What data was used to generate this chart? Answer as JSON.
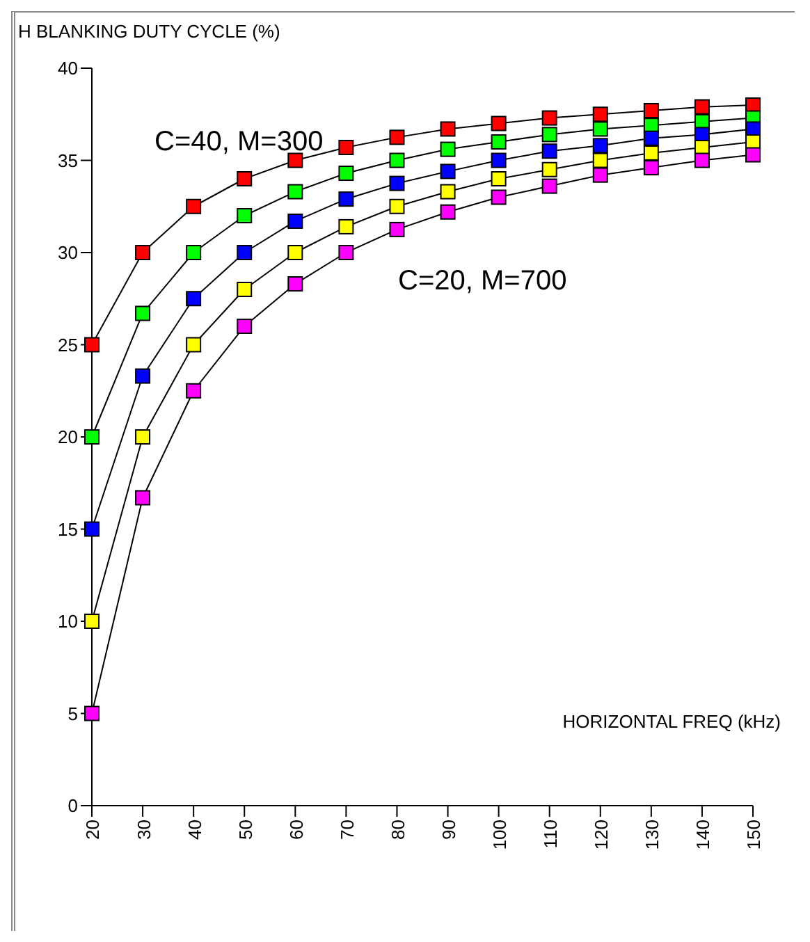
{
  "chart_data": {
    "type": "line",
    "ylabel": "H BLANKING DUTY CYCLE (%)",
    "xlabel": "HORIZONTAL FREQ (kHz)",
    "x": [
      20,
      30,
      40,
      50,
      60,
      70,
      80,
      90,
      100,
      110,
      120,
      130,
      140,
      150
    ],
    "series": [
      {
        "color": "#ff0000",
        "values": [
          25,
          30,
          32.5,
          34,
          35,
          35.7,
          36.25,
          36.7,
          37,
          37.3,
          37.5,
          37.7,
          37.9,
          38
        ]
      },
      {
        "color": "#00ff00",
        "values": [
          20,
          26.7,
          30,
          32,
          33.3,
          34.3,
          35,
          35.6,
          36,
          36.4,
          36.7,
          36.9,
          37.1,
          37.3
        ]
      },
      {
        "color": "#0000ff",
        "values": [
          15,
          23.3,
          27.5,
          30,
          31.7,
          32.9,
          33.75,
          34.4,
          35,
          35.5,
          35.8,
          36.2,
          36.4,
          36.7
        ]
      },
      {
        "color": "#ffff00",
        "values": [
          10,
          20,
          25,
          28,
          30,
          31.4,
          32.5,
          33.3,
          34,
          34.5,
          35,
          35.4,
          35.7,
          36
        ]
      },
      {
        "color": "#ff00ff",
        "values": [
          5,
          16.7,
          22.5,
          26,
          28.3,
          30,
          31.25,
          32.2,
          33,
          33.6,
          34.2,
          34.6,
          35,
          35.3
        ]
      }
    ],
    "annotations": [
      "C=40, M=300",
      "C=20, M=700"
    ],
    "xlim": [
      20,
      150
    ],
    "xticks": [
      20,
      30,
      40,
      50,
      60,
      70,
      80,
      90,
      100,
      110,
      120,
      130,
      140,
      150
    ],
    "ylim": [
      0,
      40
    ],
    "yticks": [
      0,
      5,
      10,
      15,
      20,
      25,
      30,
      35,
      40
    ],
    "marker": "square",
    "line_style": "solid",
    "grid": false,
    "legend": false
  }
}
